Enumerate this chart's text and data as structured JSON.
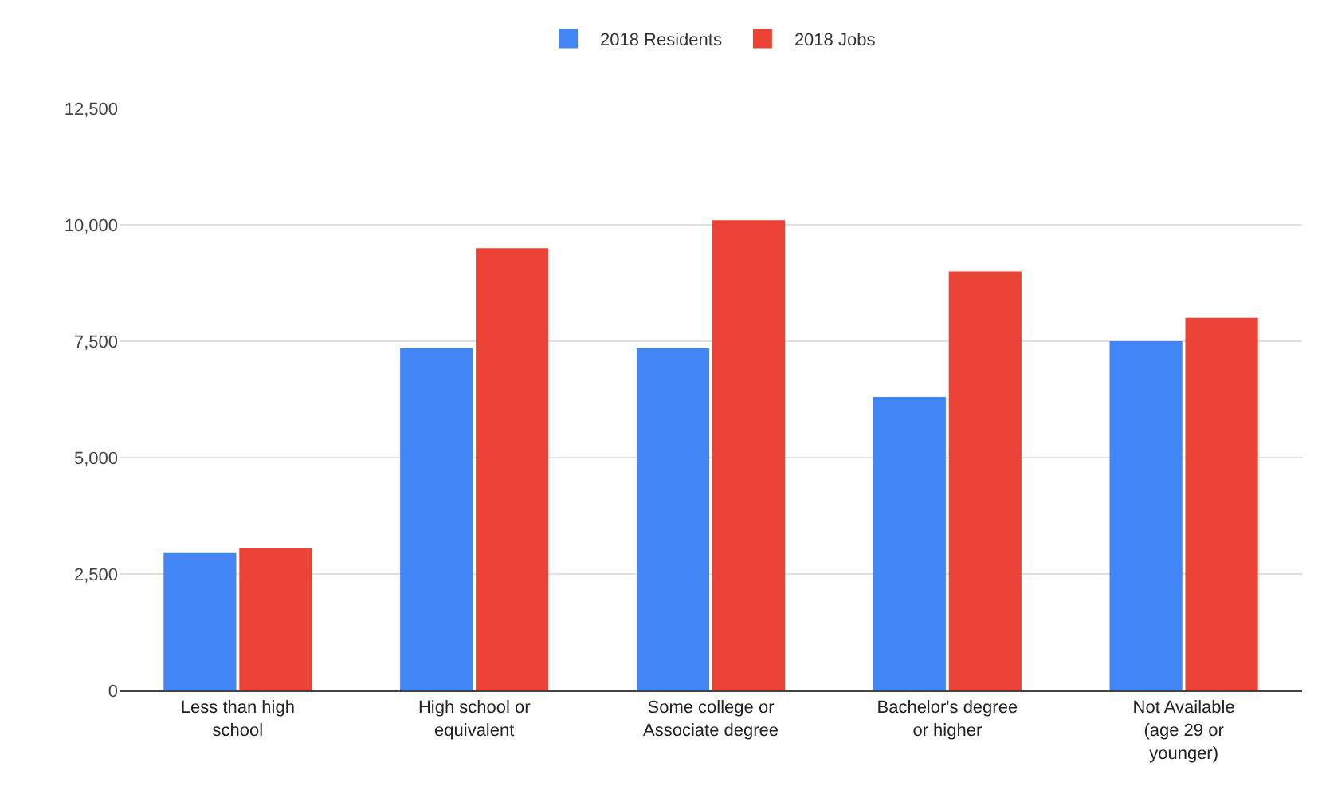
{
  "chart_data": {
    "type": "bar",
    "categories": [
      "Less than high school",
      "High school or equivalent",
      "Some college or Associate degree",
      "Bachelor's degree or higher",
      "Not Available (age 29 or younger)"
    ],
    "series": [
      {
        "name": "2018 Residents",
        "color": "#4285f4",
        "values": [
          2950,
          7350,
          7350,
          6300,
          7500
        ]
      },
      {
        "name": "2018 Jobs",
        "color": "#ea4335",
        "values": [
          3050,
          9500,
          10100,
          9000,
          8000
        ]
      }
    ],
    "ylim": [
      0,
      12500
    ],
    "yticks": [
      0,
      {
        "value": 2500,
        "label": "2,500"
      },
      {
        "value": 5000,
        "label": "5,000"
      },
      {
        "value": 7500,
        "label": "7,500"
      },
      {
        "value": 10000,
        "label": "10,000"
      },
      {
        "value": 12500,
        "label": "12,500"
      }
    ],
    "grid": "y",
    "legend": "top"
  }
}
